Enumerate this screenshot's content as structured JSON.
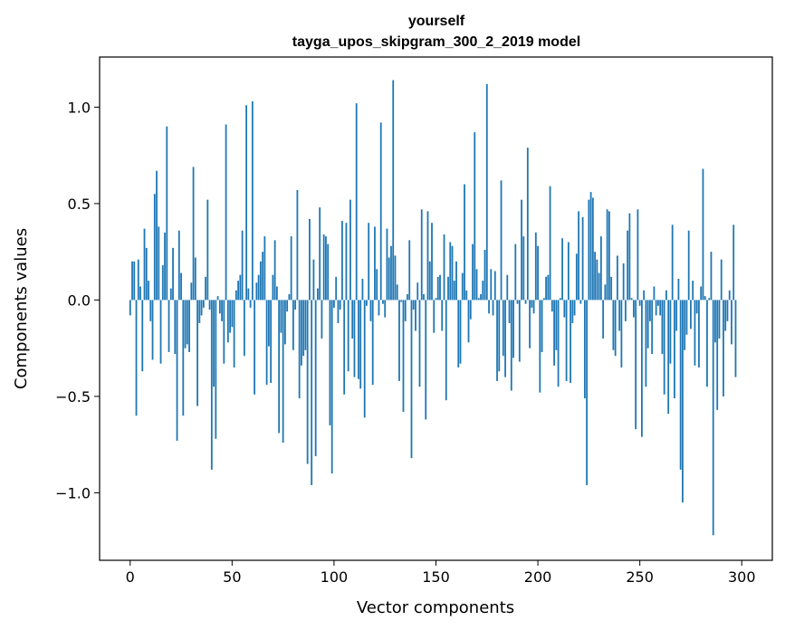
{
  "chart_data": {
    "type": "bar",
    "title": "yourself",
    "subtitle": "tayga_upos_skipgram_300_2_2019 model",
    "xlabel": "Vector components",
    "ylabel": "Components values",
    "xlim": [
      -15,
      315
    ],
    "ylim": [
      -1.35,
      1.26
    ],
    "xticks": [
      0,
      50,
      100,
      150,
      200,
      250,
      300
    ],
    "xtick_labels": [
      "0",
      "50",
      "100",
      "150",
      "200",
      "250",
      "300"
    ],
    "yticks": [
      -1.0,
      -0.5,
      0.0,
      0.5,
      1.0
    ],
    "ytick_labels": [
      "−1.0",
      "−0.5",
      "0.0",
      "0.5",
      "1.0"
    ],
    "bar_color": "#1f77b4",
    "values": [
      -0.08,
      0.2,
      0.2,
      -0.6,
      0.21,
      0.07,
      -0.37,
      0.37,
      0.27,
      0.1,
      -0.11,
      -0.31,
      0.55,
      0.67,
      0.38,
      -0.33,
      0.18,
      0.35,
      0.9,
      -0.27,
      0.06,
      0.27,
      -0.28,
      -0.73,
      0.36,
      0.14,
      -0.6,
      -0.25,
      -0.23,
      -0.27,
      0.09,
      0.69,
      0.22,
      -0.55,
      -0.12,
      -0.08,
      -0.04,
      0.12,
      0.52,
      -0.05,
      -0.88,
      -0.45,
      -0.72,
      0.02,
      -0.07,
      -0.11,
      -0.33,
      0.91,
      -0.22,
      -0.17,
      -0.14,
      -0.35,
      0.05,
      0.1,
      0.13,
      0.36,
      -0.29,
      1.01,
      0.06,
      -0.04,
      1.03,
      -0.49,
      0.09,
      0.13,
      0.2,
      0.25,
      0.33,
      -0.44,
      -0.24,
      -0.43,
      0.13,
      0.31,
      0.07,
      -0.69,
      -0.17,
      -0.74,
      -0.23,
      -0.06,
      0.03,
      0.33,
      -0.26,
      -0.05,
      0.57,
      -0.51,
      -0.34,
      -0.29,
      -0.26,
      -0.85,
      0.42,
      -0.96,
      0.21,
      -0.81,
      0.06,
      0.48,
      -0.2,
      0.34,
      0.33,
      0.29,
      -0.65,
      -0.9,
      -0.04,
      0.12,
      -0.12,
      -0.05,
      0.41,
      -0.49,
      0.4,
      -0.37,
      0.52,
      -0.2,
      -0.4,
      1.02,
      -0.41,
      -0.46,
      0.11,
      -0.61,
      -0.03,
      0.4,
      -0.11,
      -0.44,
      0.38,
      0.16,
      -0.08,
      0.92,
      -0.02,
      -0.09,
      0.37,
      0.22,
      0.28,
      1.14,
      0.23,
      0.08,
      -0.42,
      -0.01,
      -0.58,
      -0.11,
      0.03,
      0.31,
      -0.82,
      -0.05,
      -0.16,
      0.09,
      -0.45,
      0.47,
      0.03,
      -0.62,
      0.46,
      0.2,
      0.4,
      -0.17,
      0.01,
      0.12,
      0.13,
      -0.16,
      0.34,
      -0.52,
      0.12,
      0.3,
      0.28,
      0.1,
      0.2,
      -0.35,
      -0.33,
      0.14,
      0.6,
      0.05,
      -0.22,
      -0.1,
      0.29,
      0.87,
      0.16,
      0.01,
      0.03,
      0.1,
      0.26,
      1.12,
      -0.07,
      0.16,
      -0.08,
      0.15,
      -0.42,
      -0.37,
      0.62,
      -0.29,
      -0.4,
      0.13,
      -0.12,
      -0.47,
      -0.3,
      0.29,
      -0.02,
      -0.32,
      0.52,
      0.33,
      -0.02,
      0.79,
      -0.25,
      -0.04,
      -0.07,
      0.35,
      0.28,
      -0.48,
      -0.27,
      0.01,
      0.12,
      0.13,
      0.59,
      -0.06,
      -0.34,
      -0.26,
      -0.45,
      0.01,
      0.32,
      -0.09,
      -0.42,
      0.3,
      -0.43,
      -0.12,
      -0.08,
      0.24,
      0.46,
      -0.02,
      0.43,
      -0.51,
      -0.96,
      0.52,
      0.56,
      0.53,
      0.25,
      0.21,
      0.14,
      0.33,
      -0.2,
      0.08,
      0.47,
      0.46,
      0.12,
      -0.26,
      -0.29,
      0.23,
      -0.16,
      -0.35,
      0.19,
      -0.11,
      0.36,
      0.45,
      0.01,
      -0.09,
      -0.67,
      0.47,
      -0.03,
      -0.71,
      0.05,
      -0.45,
      -0.25,
      -0.11,
      -0.28,
      0.07,
      -0.08,
      -0.03,
      -0.08,
      -0.28,
      -0.49,
      0.05,
      -0.59,
      -0.33,
      0.39,
      -0.51,
      -0.16,
      0.11,
      -0.88,
      -1.05,
      -0.26,
      -0.18,
      0.36,
      -0.15,
      0.1,
      -0.34,
      -0.07,
      -0.35,
      0.07,
      0.68,
      0.02,
      -0.45,
      0.01,
      0.25,
      -1.22,
      -0.22,
      -0.57,
      -0.2,
      0.21,
      -0.5,
      -0.16,
      -0.11,
      0.05,
      -0.23,
      0.39,
      -0.4
    ]
  }
}
